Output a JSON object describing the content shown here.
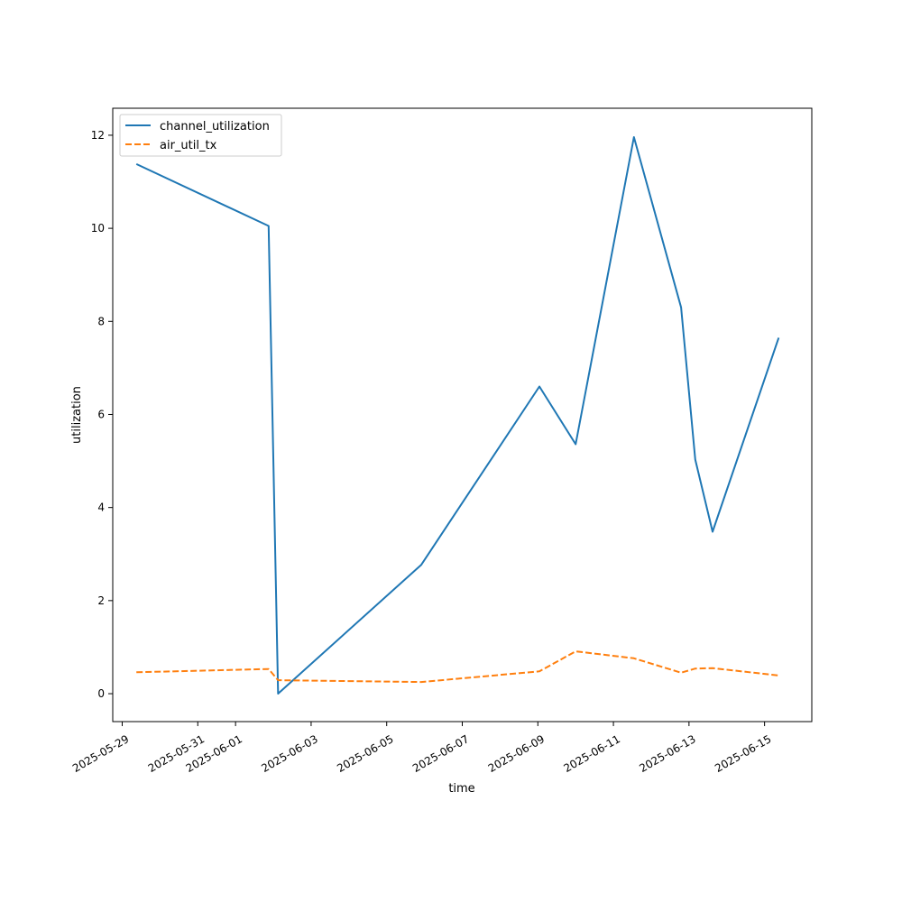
{
  "chart_data": {
    "type": "line",
    "title": "",
    "xlabel": "time",
    "ylabel": "utilization",
    "x_type": "date",
    "xlim": [
      "2025-05-28T18:00",
      "2025-06-16T06:00"
    ],
    "ylim": [
      -0.6,
      12.58
    ],
    "x_ticks": [
      "2025-05-29",
      "2025-05-31",
      "2025-06-01",
      "2025-06-03",
      "2025-06-05",
      "2025-06-07",
      "2025-06-09",
      "2025-06-11",
      "2025-06-13",
      "2025-06-15"
    ],
    "y_ticks": [
      0,
      2,
      4,
      6,
      8,
      10,
      12
    ],
    "y_tick_labels": [
      "0",
      "2",
      "4",
      "6",
      "8",
      "10",
      "12"
    ],
    "grid": false,
    "legend_position": "top-left",
    "series": [
      {
        "name": "channel_utilization",
        "color": "#1f77b4",
        "style": "solid",
        "points": [
          {
            "x": "2025-05-29T09:00",
            "y": 11.38
          },
          {
            "x": "2025-06-01T21:00",
            "y": 10.05
          },
          {
            "x": "2025-06-02T03:00",
            "y": 0.0
          },
          {
            "x": "2025-06-05T22:00",
            "y": 2.77
          },
          {
            "x": "2025-06-09T01:00",
            "y": 6.6
          },
          {
            "x": "2025-06-10T00:00",
            "y": 5.36
          },
          {
            "x": "2025-06-11T13:00",
            "y": 11.96
          },
          {
            "x": "2025-06-12T19:00",
            "y": 8.3
          },
          {
            "x": "2025-06-13T04:00",
            "y": 5.03
          },
          {
            "x": "2025-06-13T15:00",
            "y": 3.48
          },
          {
            "x": "2025-06-15T09:00",
            "y": 7.65
          }
        ]
      },
      {
        "name": "air_util_tx",
        "color": "#ff7f0e",
        "style": "dashed",
        "points": [
          {
            "x": "2025-05-29T09:00",
            "y": 0.46
          },
          {
            "x": "2025-06-01T21:00",
            "y": 0.53
          },
          {
            "x": "2025-06-02T03:00",
            "y": 0.29
          },
          {
            "x": "2025-06-05T22:00",
            "y": 0.25
          },
          {
            "x": "2025-06-09T01:00",
            "y": 0.48
          },
          {
            "x": "2025-06-10T00:00",
            "y": 0.91
          },
          {
            "x": "2025-06-11T13:00",
            "y": 0.76
          },
          {
            "x": "2025-06-12T19:00",
            "y": 0.45
          },
          {
            "x": "2025-06-13T04:00",
            "y": 0.54
          },
          {
            "x": "2025-06-13T15:00",
            "y": 0.55
          },
          {
            "x": "2025-06-15T09:00",
            "y": 0.39
          }
        ]
      }
    ]
  }
}
